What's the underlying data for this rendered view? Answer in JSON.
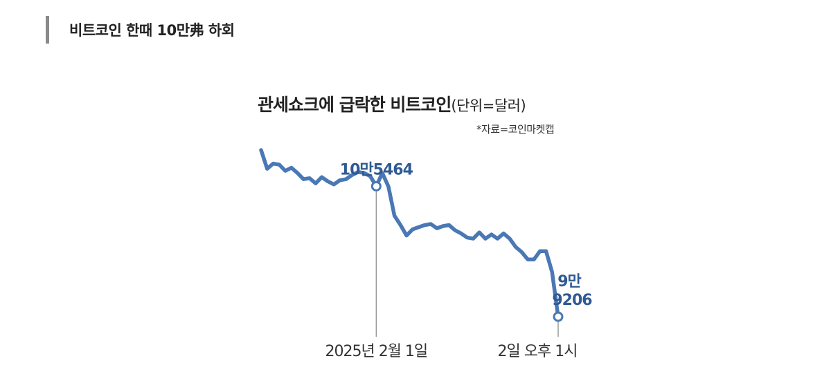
{
  "article": {
    "heading": "비트코인 한때 10만弗 하회"
  },
  "chart_data": {
    "type": "line",
    "title": "관세쇼크에 급락한 비트코인",
    "unit_note": "(단위=달러)",
    "source": "*자료=코인마켓캡",
    "color": "#4a78b5",
    "annotations": {
      "peak": {
        "label": "10만5464",
        "value": 105464,
        "date_label": "2025년 2월 1일"
      },
      "end": {
        "label_line1": "9만",
        "label_line2": "9206",
        "value": 99206,
        "date_label": "2일 오후 1시"
      }
    },
    "y_estimated": [
      107200,
      106300,
      106550,
      106500,
      106200,
      106350,
      106100,
      105800,
      105850,
      105600,
      105900,
      105700,
      105550,
      105750,
      105800,
      106000,
      106150,
      106100,
      105950,
      105464,
      106100,
      105450,
      104050,
      103600,
      103100,
      103400,
      103500,
      103600,
      103650,
      103450,
      103550,
      103600,
      103350,
      103200,
      103000,
      102950,
      103250,
      102950,
      103150,
      102950,
      103200,
      102950,
      102550,
      102300,
      101950,
      101950,
      102350,
      102350,
      101350,
      99206
    ]
  }
}
